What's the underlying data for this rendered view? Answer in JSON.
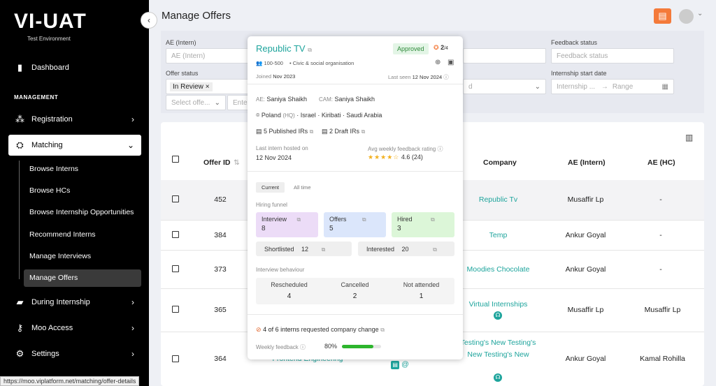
{
  "sidebar": {
    "brand": "VI-UAT",
    "brand_sub": "Test Environment",
    "dashboard": "Dashboard",
    "section": "MANAGEMENT",
    "registration": "Registration",
    "matching": "Matching",
    "sub_items": [
      "Browse Interns",
      "Browse HCs",
      "Browse Internship Opportunities",
      "Recommend Interns",
      "Manage Interviews",
      "Manage Offers"
    ],
    "during": "During Internship",
    "moo": "Moo Access",
    "settings": "Settings"
  },
  "status_url": "https://moo.viplatform.net/matching/offer-details",
  "page": {
    "title": "Manage Offers"
  },
  "filters": {
    "ae_intern_label": "AE (Intern)",
    "ae_intern_placeholder": "AE (Intern)",
    "offer_status_label": "Offer status",
    "offer_status_tag": "In Review",
    "select_placeholder": "Select offe...",
    "enter_placeholder": "Ente",
    "feedback_label": "Feedback status",
    "feedback_placeholder": "Feedback status",
    "start_label": "Internship start date",
    "start_placeholder": "Internship ...",
    "range_placeholder": "Range",
    "d_text": "d"
  },
  "table": {
    "headers": {
      "offer_id": "Offer ID",
      "company": "Company",
      "ae_intern": "AE (Intern)",
      "ae_hc": "AE (HC)"
    },
    "rows": [
      {
        "id": "452",
        "company": "Republic Tv",
        "ae_intern": "Musaffir Lp",
        "ae_hc": "-"
      },
      {
        "id": "384",
        "company": "Temp",
        "ae_intern": "Ankur Goyal",
        "ae_hc": "-"
      },
      {
        "id": "373",
        "company": "Moodies Chocolate",
        "ae_intern": "Ankur Goyal",
        "ae_hc": "-"
      },
      {
        "id": "365",
        "company": "Virtual Internships",
        "ae_intern": "Musaffir Lp",
        "ae_hc": "Musaffir Lp"
      },
      {
        "id": "364",
        "company": "Testing's New Testing's New Testing's New",
        "ae_intern": "Ankur Goyal",
        "ae_hc": "Kamal Rohilla",
        "extra": "Frontend Engineering"
      }
    ]
  },
  "popup": {
    "name": "Republic TV",
    "status": "Approved",
    "rating_badge": "2",
    "rating_total": "/4",
    "size": "100-500",
    "category": "Civic & social organisation",
    "joined_label": "Joined",
    "joined": "Nov 2023",
    "last_seen_label": "Last seen",
    "last_seen": "12 Nov 2024",
    "ae_label": "AE:",
    "ae": "Saniya Shaikh",
    "cam_label": "CAM:",
    "cam": "Saniya Shaikh",
    "locations": [
      "Poland",
      "Israel",
      "Kiribati",
      "Saudi Arabia"
    ],
    "hq": "(HQ)",
    "published_irs": "5 Published IRs",
    "draft_irs": "2 Draft IRs",
    "last_intern_label": "Last intern hosted on",
    "last_intern": "12 Nov 2024",
    "avg_label": "Avg weekly feedback rating",
    "avg": "4.6 (24)",
    "avg_value": 4.6,
    "tab_current": "Current",
    "tab_all": "All time",
    "funnel_label": "Hiring funnel",
    "interview_label": "Interview",
    "interview": "8",
    "offers_label": "Offers",
    "offers": "5",
    "hired_label": "Hired",
    "hired": "3",
    "shortlisted_label": "Shortlisted",
    "shortlisted": "12",
    "interested_label": "Interested",
    "interested": "20",
    "behaviour_label": "Interview behaviour",
    "rescheduled_label": "Rescheduled",
    "rescheduled": "4",
    "cancelled_label": "Cancelled",
    "cancelled": "2",
    "not_attended_label": "Not attended",
    "not_attended": "1",
    "change_bold": "4 of 6 interns",
    "change_rest": "requested company change",
    "weekly_label": "Weekly feedback",
    "weekly": "80%",
    "weekly_value": 0.8
  },
  "colors": {
    "accent": "#1da49c",
    "brand_orange": "#f47a3a"
  }
}
